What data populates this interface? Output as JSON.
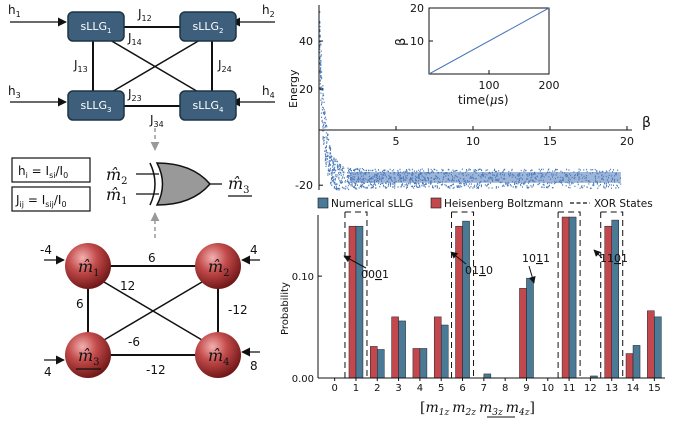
{
  "network": {
    "nodes": [
      {
        "id": "n1",
        "main": "sLLG",
        "sub": "1",
        "h_main": "h",
        "h_sub": "1"
      },
      {
        "id": "n2",
        "main": "sLLG",
        "sub": "2",
        "h_main": "h",
        "h_sub": "2"
      },
      {
        "id": "n3",
        "main": "sLLG",
        "sub": "3",
        "h_main": "h",
        "h_sub": "3"
      },
      {
        "id": "n4",
        "main": "sLLG",
        "sub": "4",
        "h_main": "h",
        "h_sub": "4"
      }
    ],
    "couplings": [
      {
        "main": "J",
        "sub": "12"
      },
      {
        "main": "J",
        "sub": "14"
      },
      {
        "main": "J",
        "sub": "13"
      },
      {
        "main": "J",
        "sub": "24"
      },
      {
        "main": "J",
        "sub": "23"
      },
      {
        "main": "J",
        "sub": "34"
      }
    ]
  },
  "legend_boxes": {
    "h_eq": {
      "lhs_main": "h",
      "lhs_sub": "i",
      "op": " = ",
      "num_main": "I",
      "num_sub": "si",
      "slash": "/",
      "den_main": "I",
      "den_sub": "0"
    },
    "j_eq": {
      "lhs_main": "J",
      "lhs_sub": "ij",
      "op": " = ",
      "num_main": "I",
      "num_sub": "sij",
      "slash": "/",
      "den_main": "I",
      "den_sub": "0"
    }
  },
  "gate": {
    "in1_main": "m̂",
    "in1_sub": "2",
    "in2_main": "m̂",
    "in2_sub": "1",
    "out_main": "m̂",
    "out_sub": "3"
  },
  "ising": {
    "nodes": [
      {
        "main": "m̂",
        "sub": "1",
        "bias": "-4"
      },
      {
        "main": "m̂",
        "sub": "2",
        "bias": "4"
      },
      {
        "main": "m̂",
        "sub": "3",
        "bias": "4"
      },
      {
        "main": "m̂",
        "sub": "4",
        "bias": "8"
      }
    ],
    "weights": {
      "w12": "6",
      "w14": "12",
      "w13": "6",
      "w24": "-12",
      "w23": "-6",
      "w34": "-12"
    }
  },
  "chart_data": [
    {
      "type": "scatter",
      "ylabel": "Energy",
      "xlabel": "β",
      "xlim": [
        0,
        20
      ],
      "ylim": [
        -22,
        55
      ],
      "x_ticks": [
        "5",
        "10",
        "15",
        "20"
      ],
      "y_ticks": [
        "40",
        "20",
        "-20"
      ],
      "description_series": {
        "start_energy": 48,
        "settled_energy": -17,
        "spread": 4
      }
    },
    {
      "type": "line",
      "xlabel_main": "time(",
      "xlabel_unit": "μ",
      "xlabel_end": "s)",
      "ylabel": "β",
      "x": [
        0,
        200
      ],
      "y": [
        0,
        20
      ],
      "xlim": [
        0,
        200
      ],
      "ylim": [
        0,
        20
      ],
      "x_ticks": [
        "100",
        "200"
      ],
      "y_ticks": [
        "10",
        "20"
      ]
    },
    {
      "type": "bar",
      "ylabel": "Probability",
      "ylim": [
        0,
        0.16
      ],
      "y_ticks": [
        "0.00",
        "0.10"
      ],
      "categories": [
        "0",
        "1",
        "2",
        "3",
        "4",
        "5",
        "6",
        "7",
        "8",
        "9",
        "10",
        "11",
        "12",
        "13",
        "14",
        "15"
      ],
      "series": [
        {
          "name": "Numerical sLLG",
          "color": "#4a7a96",
          "values": [
            0.0,
            0.149,
            0.028,
            0.056,
            0.029,
            0.052,
            0.154,
            0.004,
            0.0,
            0.098,
            0.0,
            0.158,
            0.002,
            0.155,
            0.032,
            0.06
          ]
        },
        {
          "name": "Heisenberg Boltzmann",
          "color": "#c2484e",
          "values": [
            0.0,
            0.149,
            0.031,
            0.06,
            0.029,
            0.06,
            0.149,
            0.0,
            0.0,
            0.088,
            0.0,
            0.158,
            0.0,
            0.149,
            0.024,
            0.066
          ]
        }
      ],
      "xor_states_legend": "XOR States",
      "xor_states": [
        1,
        6,
        11,
        13
      ],
      "annotations": [
        {
          "pre": "00",
          "under": "0",
          "post": "1"
        },
        {
          "pre": "01",
          "under": "1",
          "post": "0"
        },
        {
          "pre": "10",
          "under": "1",
          "post": "1"
        },
        {
          "pre": "11",
          "under": "0",
          "post": "1"
        }
      ],
      "xlabel_parts": {
        "open": "[",
        "a": "m",
        "a_sub": "1z",
        "b": "m",
        "b_sub": "2z",
        "c": "m",
        "c_sub": "3z",
        "d": "m",
        "d_sub": "4z",
        "close": "]"
      }
    }
  ]
}
